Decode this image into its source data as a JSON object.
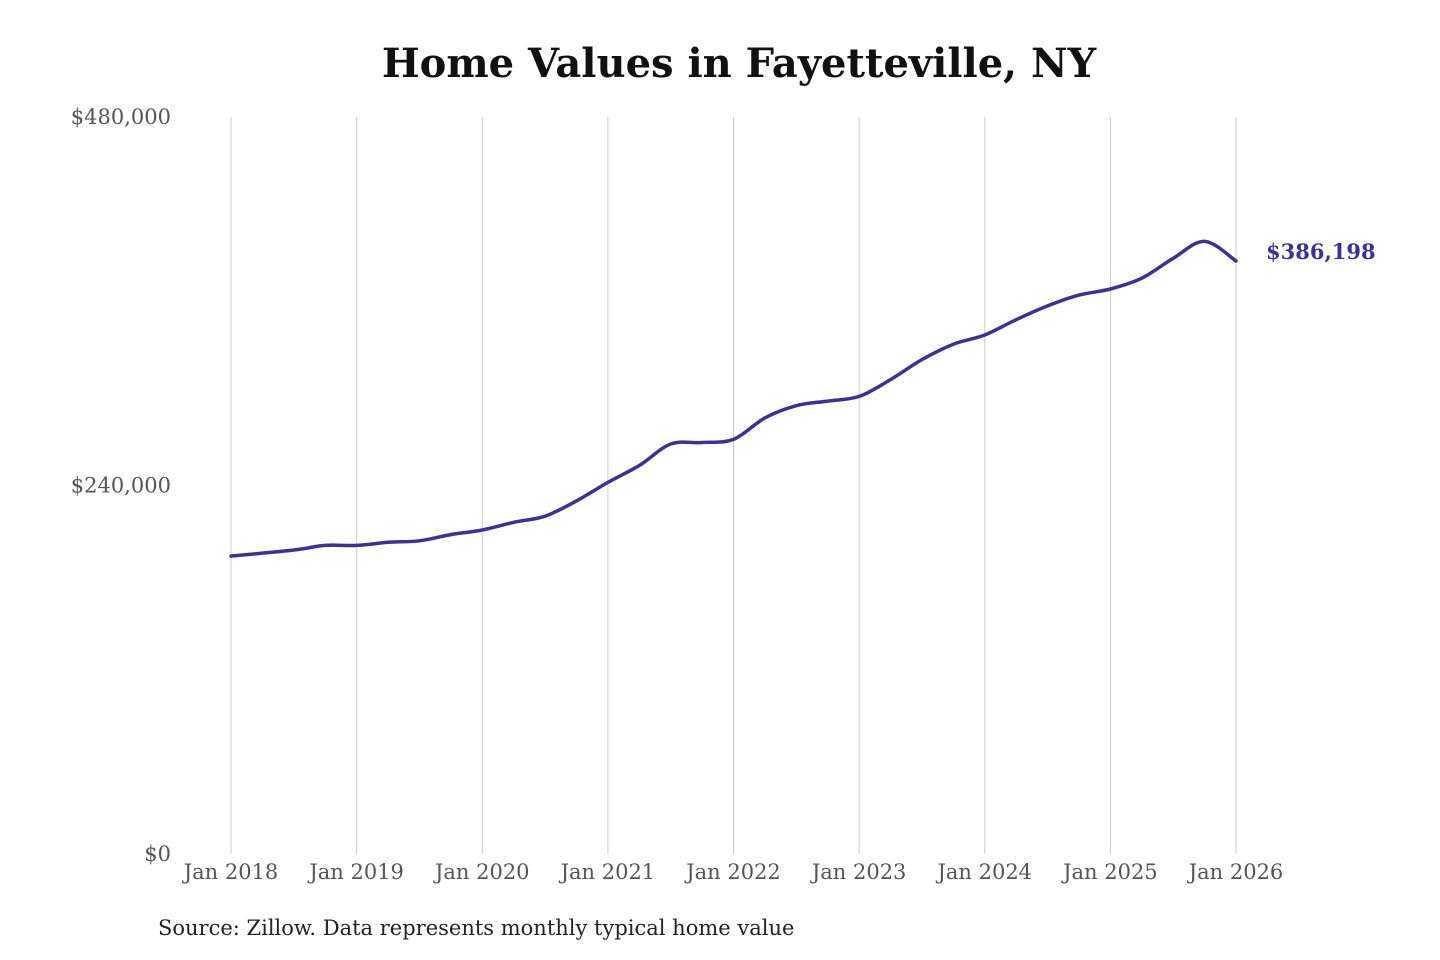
{
  "chart_data": {
    "type": "line",
    "title": "Home Values in Fayetteville, NY",
    "source": "Source: Zillow. Data represents monthly typical home value",
    "xlabel": "",
    "ylabel": "",
    "x_ticks": [
      "Jan 2018",
      "Jan 2019",
      "Jan 2020",
      "Jan 2021",
      "Jan 2022",
      "Jan 2023",
      "Jan 2024",
      "Jan 2025",
      "Jan 2026"
    ],
    "y_ticks": [
      {
        "value": 0,
        "label": "$0"
      },
      {
        "value": 240000,
        "label": "$240,000"
      },
      {
        "value": 480000,
        "label": "$480,000"
      }
    ],
    "ylim": [
      0,
      480000
    ],
    "xlim": [
      "2018-01",
      "2026-01"
    ],
    "grid": "vertical lines at year ticks",
    "legend": "none",
    "line_color": "#3b3293",
    "end_label": "$386,198",
    "series": [
      {
        "x": [
          "2018-01",
          "2018-07",
          "2018-10",
          "2019-01",
          "2019-04",
          "2019-07",
          "2019-10",
          "2020-01",
          "2020-04",
          "2020-07",
          "2020-10",
          "2021-01",
          "2021-04",
          "2021-07",
          "2021-10",
          "2022-01",
          "2022-04",
          "2022-07",
          "2022-10",
          "2023-01",
          "2023-04",
          "2023-07",
          "2023-10",
          "2024-01",
          "2024-04",
          "2024-07",
          "2024-10",
          "2025-01",
          "2025-04",
          "2025-07",
          "2025-10",
          "2026-01"
        ],
        "values": [
          194000,
          198000,
          201000,
          201000,
          203000,
          204000,
          208000,
          211000,
          216000,
          220000,
          230000,
          242000,
          253000,
          267000,
          268000,
          270000,
          284000,
          292000,
          295000,
          298000,
          309000,
          322000,
          332000,
          338000,
          348000,
          357000,
          364000,
          368000,
          375000,
          388000,
          399000,
          386198
        ]
      }
    ]
  }
}
